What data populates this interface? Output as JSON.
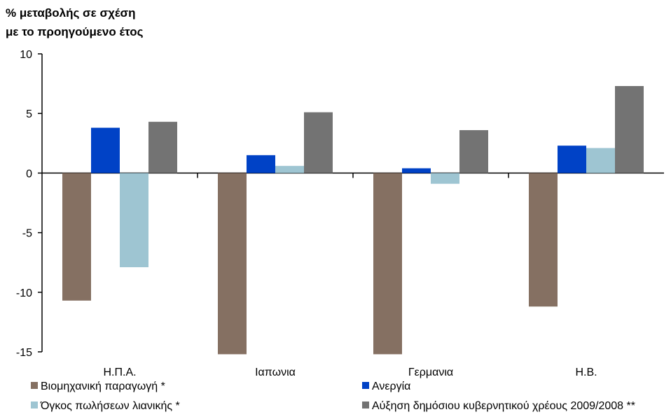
{
  "chart_data": {
    "type": "bar",
    "title": "",
    "ylabel_lines": [
      "% μεταβολής σε σχέση",
      "με το προηγούμενο έτος"
    ],
    "xlabel": "",
    "categories": [
      "Η.Π.Α.",
      "Ιαπωνια",
      "Γερμανια",
      "Η.Β."
    ],
    "ylim": [
      -15,
      10
    ],
    "yticks": [
      10,
      5,
      0,
      -5,
      -10,
      -15
    ],
    "series": [
      {
        "name": "Βιομηχανική παραγωγή *",
        "color": "#857062",
        "values": [
          -10.7,
          -15.2,
          -15.2,
          -11.2
        ]
      },
      {
        "name": "Ανεργία",
        "color": "#0042c6",
        "values": [
          3.8,
          1.5,
          0.4,
          2.3
        ]
      },
      {
        "name": "Όγκος πωλήσεων λιανικής *",
        "color": "#9ec5d2",
        "values": [
          -7.9,
          0.6,
          -0.9,
          2.1
        ]
      },
      {
        "name": "Αύξηση δημόσιου κυβερνητικού χρέους 2009/2008 **",
        "color": "#737373",
        "values": [
          4.3,
          5.1,
          3.6,
          7.3
        ]
      }
    ],
    "legend_position": "bottom"
  }
}
